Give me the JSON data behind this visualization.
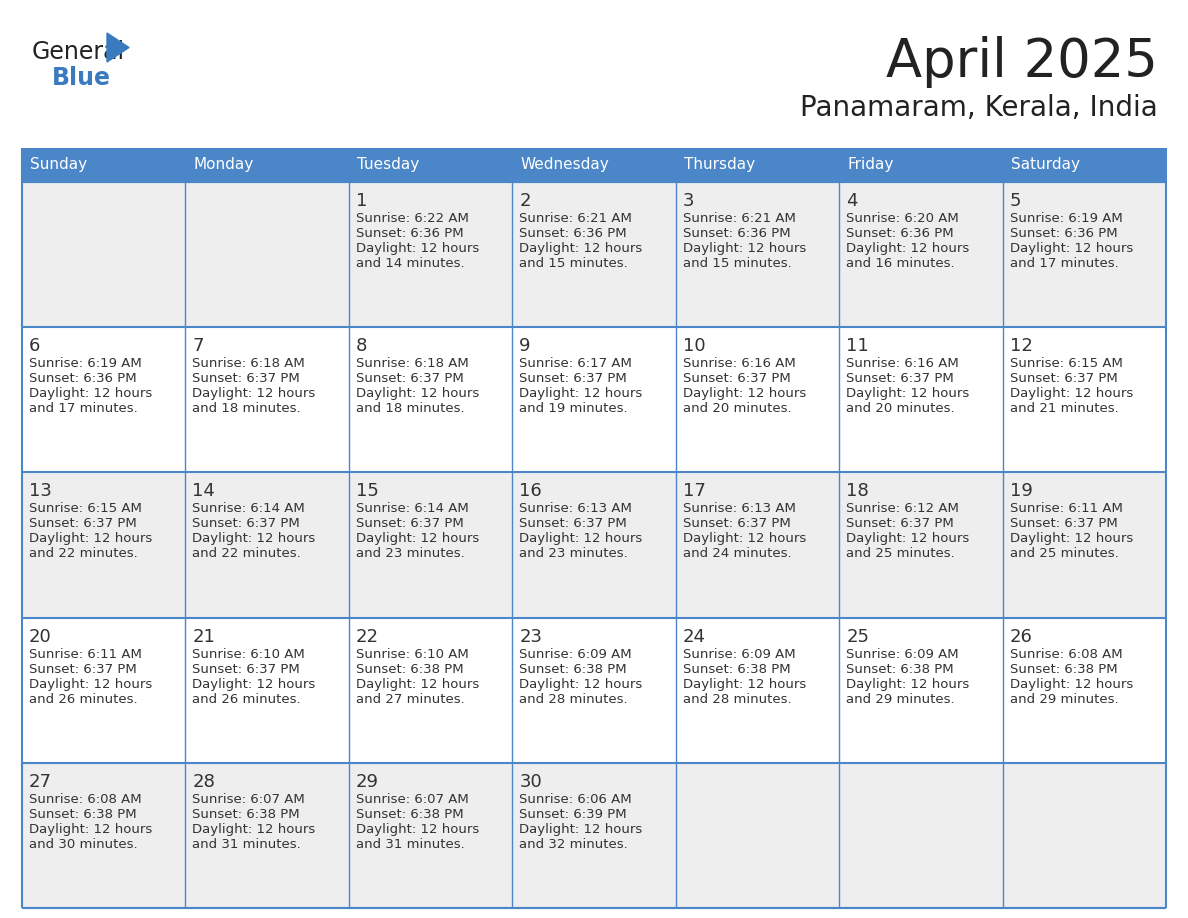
{
  "title": "April 2025",
  "subtitle": "Panamaram, Kerala, India",
  "header_bg_color": "#4a86c8",
  "header_text_color": "#ffffff",
  "cell_bg_white": "#ffffff",
  "cell_bg_gray": "#eeeeee",
  "border_color": "#4a86c8",
  "text_color": "#333333",
  "day_headers": [
    "Sunday",
    "Monday",
    "Tuesday",
    "Wednesday",
    "Thursday",
    "Friday",
    "Saturday"
  ],
  "weeks": [
    [
      {
        "day": "",
        "sunrise": "",
        "sunset": "",
        "daylight": ""
      },
      {
        "day": "",
        "sunrise": "",
        "sunset": "",
        "daylight": ""
      },
      {
        "day": "1",
        "sunrise": "6:22 AM",
        "sunset": "6:36 PM",
        "daylight": "and 14 minutes."
      },
      {
        "day": "2",
        "sunrise": "6:21 AM",
        "sunset": "6:36 PM",
        "daylight": "and 15 minutes."
      },
      {
        "day": "3",
        "sunrise": "6:21 AM",
        "sunset": "6:36 PM",
        "daylight": "and 15 minutes."
      },
      {
        "day": "4",
        "sunrise": "6:20 AM",
        "sunset": "6:36 PM",
        "daylight": "and 16 minutes."
      },
      {
        "day": "5",
        "sunrise": "6:19 AM",
        "sunset": "6:36 PM",
        "daylight": "and 17 minutes."
      }
    ],
    [
      {
        "day": "6",
        "sunrise": "6:19 AM",
        "sunset": "6:36 PM",
        "daylight": "and 17 minutes."
      },
      {
        "day": "7",
        "sunrise": "6:18 AM",
        "sunset": "6:37 PM",
        "daylight": "and 18 minutes."
      },
      {
        "day": "8",
        "sunrise": "6:18 AM",
        "sunset": "6:37 PM",
        "daylight": "and 18 minutes."
      },
      {
        "day": "9",
        "sunrise": "6:17 AM",
        "sunset": "6:37 PM",
        "daylight": "and 19 minutes."
      },
      {
        "day": "10",
        "sunrise": "6:16 AM",
        "sunset": "6:37 PM",
        "daylight": "and 20 minutes."
      },
      {
        "day": "11",
        "sunrise": "6:16 AM",
        "sunset": "6:37 PM",
        "daylight": "and 20 minutes."
      },
      {
        "day": "12",
        "sunrise": "6:15 AM",
        "sunset": "6:37 PM",
        "daylight": "and 21 minutes."
      }
    ],
    [
      {
        "day": "13",
        "sunrise": "6:15 AM",
        "sunset": "6:37 PM",
        "daylight": "and 22 minutes."
      },
      {
        "day": "14",
        "sunrise": "6:14 AM",
        "sunset": "6:37 PM",
        "daylight": "and 22 minutes."
      },
      {
        "day": "15",
        "sunrise": "6:14 AM",
        "sunset": "6:37 PM",
        "daylight": "and 23 minutes."
      },
      {
        "day": "16",
        "sunrise": "6:13 AM",
        "sunset": "6:37 PM",
        "daylight": "and 23 minutes."
      },
      {
        "day": "17",
        "sunrise": "6:13 AM",
        "sunset": "6:37 PM",
        "daylight": "and 24 minutes."
      },
      {
        "day": "18",
        "sunrise": "6:12 AM",
        "sunset": "6:37 PM",
        "daylight": "and 25 minutes."
      },
      {
        "day": "19",
        "sunrise": "6:11 AM",
        "sunset": "6:37 PM",
        "daylight": "and 25 minutes."
      }
    ],
    [
      {
        "day": "20",
        "sunrise": "6:11 AM",
        "sunset": "6:37 PM",
        "daylight": "and 26 minutes."
      },
      {
        "day": "21",
        "sunrise": "6:10 AM",
        "sunset": "6:37 PM",
        "daylight": "and 26 minutes."
      },
      {
        "day": "22",
        "sunrise": "6:10 AM",
        "sunset": "6:38 PM",
        "daylight": "and 27 minutes."
      },
      {
        "day": "23",
        "sunrise": "6:09 AM",
        "sunset": "6:38 PM",
        "daylight": "and 28 minutes."
      },
      {
        "day": "24",
        "sunrise": "6:09 AM",
        "sunset": "6:38 PM",
        "daylight": "and 28 minutes."
      },
      {
        "day": "25",
        "sunrise": "6:09 AM",
        "sunset": "6:38 PM",
        "daylight": "and 29 minutes."
      },
      {
        "day": "26",
        "sunrise": "6:08 AM",
        "sunset": "6:38 PM",
        "daylight": "and 29 minutes."
      }
    ],
    [
      {
        "day": "27",
        "sunrise": "6:08 AM",
        "sunset": "6:38 PM",
        "daylight": "and 30 minutes."
      },
      {
        "day": "28",
        "sunrise": "6:07 AM",
        "sunset": "6:38 PM",
        "daylight": "and 31 minutes."
      },
      {
        "day": "29",
        "sunrise": "6:07 AM",
        "sunset": "6:38 PM",
        "daylight": "and 31 minutes."
      },
      {
        "day": "30",
        "sunrise": "6:06 AM",
        "sunset": "6:39 PM",
        "daylight": "and 32 minutes."
      },
      {
        "day": "",
        "sunrise": "",
        "sunset": "",
        "daylight": ""
      },
      {
        "day": "",
        "sunrise": "",
        "sunset": "",
        "daylight": ""
      },
      {
        "day": "",
        "sunrise": "",
        "sunset": "",
        "daylight": ""
      }
    ]
  ],
  "logo_general_color": "#222222",
  "logo_blue_color": "#3a7abf",
  "logo_triangle_color": "#3a7abf",
  "title_color": "#222222",
  "subtitle_color": "#222222"
}
